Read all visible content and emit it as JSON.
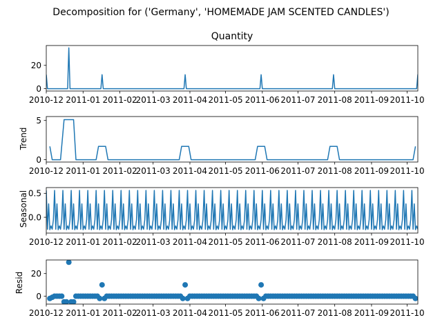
{
  "figure": {
    "suptitle": "Decomposition for ('Germany', 'HOMEMADE JAM SCENTED CANDLES')",
    "line_color": "#1f77b4"
  },
  "chart_data": [
    {
      "type": "line",
      "title": "Quantity",
      "ylabel": "",
      "x_range": [
        "2010-12-01",
        "2011-10-10"
      ],
      "ylim": [
        -2,
        37
      ],
      "yticks": [
        0,
        20
      ],
      "xticks": [
        "2010-12",
        "2011-01",
        "2011-02",
        "2011-03",
        "2011-04",
        "2011-05",
        "2011-06",
        "2011-07",
        "2011-08",
        "2011-09",
        "2011-10"
      ],
      "baseline": 0,
      "series": [
        {
          "points": [
            {
              "x": "2010-12-01",
              "y": 12
            },
            {
              "x": "2010-12-20",
              "y": 35
            },
            {
              "x": "2011-01-17",
              "y": 12
            },
            {
              "x": "2011-03-28",
              "y": 12
            },
            {
              "x": "2011-05-31",
              "y": 12
            },
            {
              "x": "2011-07-31",
              "y": 12
            },
            {
              "x": "2011-10-10",
              "y": 12
            }
          ]
        }
      ]
    },
    {
      "type": "line",
      "title": "",
      "ylabel": "Trend",
      "x_range": [
        "2010-12-01",
        "2011-10-10"
      ],
      "ylim": [
        -0.3,
        5.5
      ],
      "yticks": [
        0,
        5
      ],
      "xticks": [
        "2010-12",
        "2011-01",
        "2011-02",
        "2011-03",
        "2011-04",
        "2011-05",
        "2011-06",
        "2011-07",
        "2011-08",
        "2011-09",
        "2011-10"
      ],
      "series": [
        {
          "points": [
            {
              "x": "2010-12-04",
              "y": 1.7
            },
            {
              "x": "2010-12-06",
              "y": 0
            },
            {
              "x": "2010-12-13",
              "y": 0
            },
            {
              "x": "2010-12-16",
              "y": 5.1
            },
            {
              "x": "2010-12-24",
              "y": 5.1
            },
            {
              "x": "2010-12-26",
              "y": 0
            },
            {
              "x": "2011-01-12",
              "y": 0
            },
            {
              "x": "2011-01-14",
              "y": 1.7
            },
            {
              "x": "2011-01-20",
              "y": 1.7
            },
            {
              "x": "2011-01-22",
              "y": 0
            },
            {
              "x": "2011-03-23",
              "y": 0
            },
            {
              "x": "2011-03-25",
              "y": 1.7
            },
            {
              "x": "2011-03-31",
              "y": 1.7
            },
            {
              "x": "2011-04-02",
              "y": 0
            },
            {
              "x": "2011-05-26",
              "y": 0
            },
            {
              "x": "2011-05-28",
              "y": 1.7
            },
            {
              "x": "2011-06-03",
              "y": 1.7
            },
            {
              "x": "2011-06-05",
              "y": 0
            },
            {
              "x": "2011-07-26",
              "y": 0
            },
            {
              "x": "2011-07-28",
              "y": 1.7
            },
            {
              "x": "2011-08-03",
              "y": 1.7
            },
            {
              "x": "2011-08-05",
              "y": 0
            },
            {
              "x": "2011-10-06",
              "y": 0
            },
            {
              "x": "2011-10-08",
              "y": 1.7
            }
          ]
        }
      ]
    },
    {
      "type": "line",
      "title": "",
      "ylabel": "Seasonal",
      "x_range": [
        "2010-12-01",
        "2011-10-10"
      ],
      "ylim": [
        -0.33,
        0.62
      ],
      "yticks": [
        0.5,
        0.0
      ],
      "ytick_labels": [
        "0.5",
        "0.0"
      ],
      "xticks": [
        "2010-12",
        "2011-01",
        "2011-02",
        "2011-03",
        "2011-04",
        "2011-05",
        "2011-06",
        "2011-07",
        "2011-08",
        "2011-09",
        "2011-10"
      ],
      "weekly_pattern": [
        0.56,
        -0.25,
        0.28,
        -0.26,
        -0.18,
        -0.25,
        -0.05
      ],
      "start": "2010-12-01",
      "end": "2011-10-10"
    },
    {
      "type": "scatter",
      "title": "",
      "ylabel": "Resid",
      "x_range": [
        "2010-12-01",
        "2011-10-10"
      ],
      "ylim": [
        -7,
        32
      ],
      "yticks": [
        0,
        20
      ],
      "xticks": [
        "2010-12",
        "2011-01",
        "2011-02",
        "2011-03",
        "2011-04",
        "2011-05",
        "2011-06",
        "2011-07",
        "2011-08",
        "2011-09",
        "2011-10"
      ],
      "start": "2010-12-04",
      "end": "2011-10-08",
      "default_value": 0,
      "points": [
        {
          "x": "2010-12-04",
          "y": -2
        },
        {
          "x": "2010-12-06",
          "y": -1
        },
        {
          "x": "2010-12-16",
          "y": -5
        },
        {
          "x": "2010-12-18",
          "y": -5
        },
        {
          "x": "2010-12-20",
          "y": 30
        },
        {
          "x": "2010-12-22",
          "y": -5
        },
        {
          "x": "2010-12-24",
          "y": -5
        },
        {
          "x": "2011-01-15",
          "y": -2
        },
        {
          "x": "2011-01-17",
          "y": 10
        },
        {
          "x": "2011-01-19",
          "y": -2
        },
        {
          "x": "2011-03-26",
          "y": -2
        },
        {
          "x": "2011-03-28",
          "y": 10
        },
        {
          "x": "2011-03-30",
          "y": -2
        },
        {
          "x": "2011-05-29",
          "y": -2
        },
        {
          "x": "2011-05-31",
          "y": 10
        },
        {
          "x": "2011-06-02",
          "y": -2
        },
        {
          "x": "2011-07-29",
          "y": -2
        },
        {
          "x": "2011-07-31",
          "y": 10
        },
        {
          "x": "2011-08-02",
          "y": -2
        },
        {
          "x": "2011-10-08",
          "y": -2
        }
      ]
    }
  ]
}
